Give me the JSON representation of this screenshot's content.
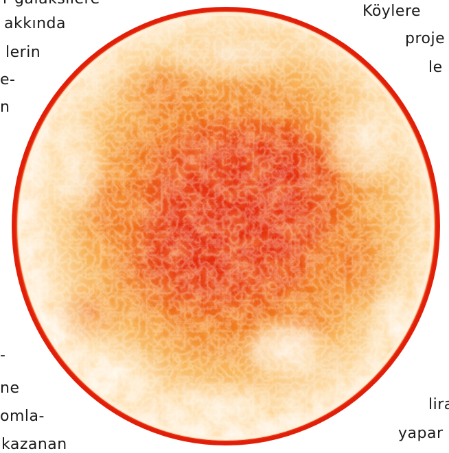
{
  "left_column": {
    "line_1": "r  galaksilere",
    "line_2": "akkında",
    "line_3": "lerin",
    "line_4": "e-",
    "line_5": "n",
    "line_6": "-",
    "line_7": "ne",
    "line_8": "omla-",
    "line_9": "kazanan"
  },
  "right_column": {
    "line_1": "Köylere",
    "line_2": "proje",
    "line_3": "le",
    "line_4": "lira",
    "line_5": "yapar"
  },
  "figure": {
    "subject": "sun-photograph",
    "colors": {
      "rim": "#e8300f",
      "core": "#e4260d",
      "mid": "#f07a1c",
      "light": "#fbd089",
      "pale": "#fff5e6"
    }
  }
}
